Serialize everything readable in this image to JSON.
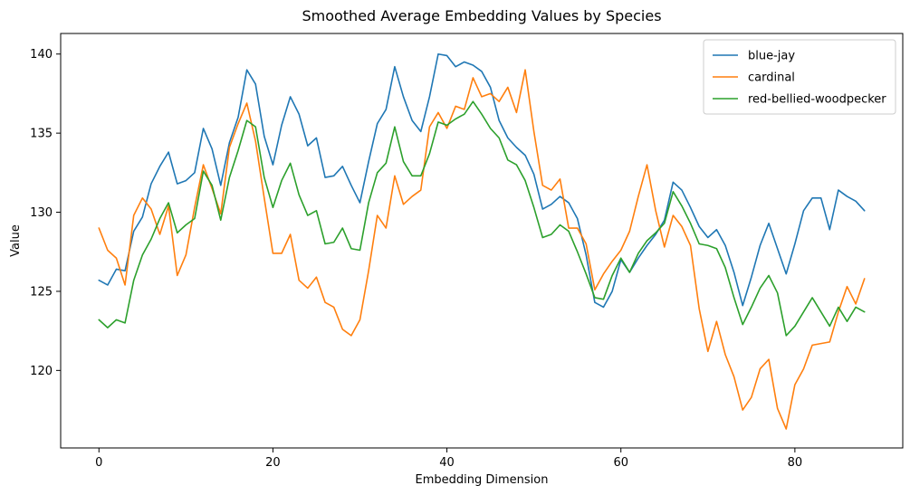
{
  "chart_data": {
    "type": "line",
    "title": "Smoothed Average Embedding Values by Species",
    "xlabel": "Embedding Dimension",
    "ylabel": "Value",
    "xlim": [
      -4.4,
      92.4
    ],
    "ylim": [
      115.1,
      141.3
    ],
    "xticks": [
      0,
      20,
      40,
      60,
      80
    ],
    "yticks": [
      120,
      125,
      130,
      135,
      140
    ],
    "grid": false,
    "legend_position": "top-right",
    "series": [
      {
        "name": "blue-jay",
        "color": "#1f77b4",
        "values": [
          125.7,
          125.4,
          126.4,
          126.3,
          128.8,
          129.7,
          131.8,
          132.9,
          133.8,
          131.8,
          132.0,
          132.5,
          135.3,
          134.0,
          131.7,
          134.4,
          136.0,
          139.0,
          138.1,
          134.8,
          133.0,
          135.5,
          137.3,
          136.2,
          134.2,
          134.7,
          132.2,
          132.3,
          132.9,
          131.7,
          130.6,
          133.2,
          135.6,
          136.5,
          139.2,
          137.3,
          135.8,
          135.1,
          137.3,
          140.0,
          139.9,
          139.2,
          139.5,
          139.3,
          138.9,
          137.9,
          135.8,
          134.7,
          134.1,
          133.6,
          132.4,
          130.2,
          130.5,
          131.0,
          130.6,
          129.6,
          127.3,
          124.3,
          124.0,
          125.0,
          127.0,
          126.2,
          127.1,
          127.9,
          128.6,
          129.5,
          131.9,
          131.4,
          130.3,
          129.1,
          128.4,
          128.9,
          127.9,
          126.2,
          124.1,
          125.9,
          127.9,
          129.3,
          127.7,
          126.1,
          128.0,
          130.1,
          130.9,
          130.9,
          128.9,
          131.4,
          131.0,
          130.7,
          130.1
        ]
      },
      {
        "name": "cardinal",
        "color": "#ff7f0e",
        "values": [
          129.0,
          127.6,
          127.1,
          125.4,
          129.8,
          130.9,
          130.2,
          128.6,
          130.4,
          126.0,
          127.3,
          130.3,
          133.0,
          131.5,
          129.9,
          134.1,
          135.6,
          136.9,
          134.5,
          130.9,
          127.4,
          127.4,
          128.6,
          125.7,
          125.2,
          125.9,
          124.3,
          124.0,
          122.6,
          122.2,
          123.2,
          126.3,
          129.8,
          129.0,
          132.3,
          130.5,
          131.0,
          131.4,
          135.4,
          136.3,
          135.3,
          136.7,
          136.5,
          138.5,
          137.3,
          137.5,
          137.0,
          137.9,
          136.3,
          139.0,
          135.1,
          131.7,
          131.4,
          132.1,
          129.0,
          129.0,
          128.0,
          125.1,
          126.1,
          126.9,
          127.6,
          128.8,
          131.0,
          133.0,
          130.1,
          127.8,
          129.8,
          129.1,
          127.9,
          123.9,
          121.2,
          123.1,
          121.0,
          119.6,
          117.5,
          118.3,
          120.1,
          120.7,
          117.6,
          116.3,
          119.1,
          120.1,
          121.6,
          121.7,
          121.8,
          123.7,
          125.3,
          124.2,
          125.8
        ]
      },
      {
        "name": "red-bellied-woodpecker",
        "color": "#2ca02c",
        "values": [
          123.2,
          122.7,
          123.2,
          123.0,
          125.7,
          127.3,
          128.3,
          129.6,
          130.6,
          128.7,
          129.2,
          129.6,
          132.6,
          131.7,
          129.5,
          132.2,
          133.9,
          135.8,
          135.4,
          132.2,
          130.3,
          132.0,
          133.1,
          131.1,
          129.8,
          130.1,
          128.0,
          128.1,
          129.0,
          127.7,
          127.6,
          130.6,
          132.5,
          133.1,
          135.4,
          133.2,
          132.3,
          132.3,
          133.7,
          135.7,
          135.5,
          135.9,
          136.2,
          137.0,
          136.2,
          135.3,
          134.7,
          133.3,
          133.0,
          132.0,
          130.3,
          128.4,
          128.6,
          129.2,
          128.8,
          127.5,
          126.1,
          124.6,
          124.5,
          126.0,
          127.1,
          126.2,
          127.4,
          128.2,
          128.7,
          129.3,
          131.3,
          130.4,
          129.3,
          128.0,
          127.9,
          127.7,
          126.5,
          124.6,
          122.9,
          124.0,
          125.2,
          126.0,
          124.9,
          122.2,
          122.8,
          123.7,
          124.6,
          123.7,
          122.8,
          124.0,
          123.1,
          124.0,
          123.7
        ]
      }
    ]
  }
}
